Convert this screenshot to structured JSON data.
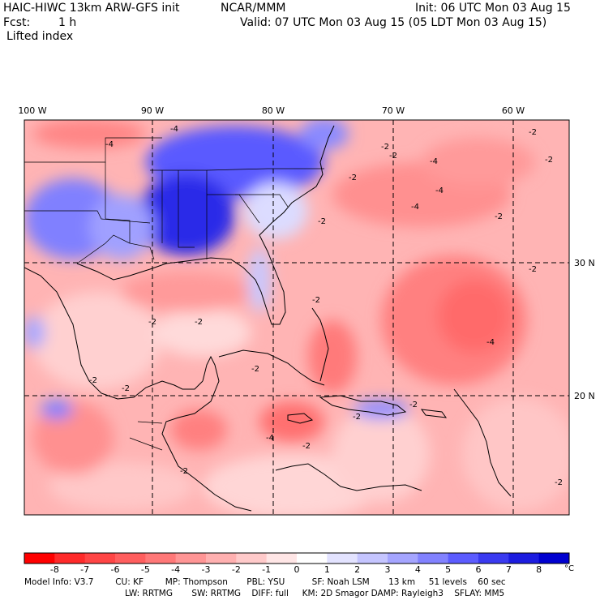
{
  "header": {
    "title_left": "HAIC-HIWC 13km ARW-GFS init",
    "org": "NCAR/MMM",
    "init": "Init: 06 UTC Mon 03 Aug 15",
    "fcst_label": "Fcst:",
    "fcst_value": "1 h",
    "valid": "Valid: 07 UTC Mon 03 Aug 15 (05 LDT Mon 03 Aug 15)",
    "field": "Lifted index"
  },
  "map": {
    "lon_labels": [
      "100 W",
      "90 W",
      "80 W",
      "70 W",
      "60 W"
    ],
    "lat_labels": [
      "30 N",
      "20 N"
    ],
    "contour_labels": [
      "-4",
      "-4",
      "-2",
      "-2",
      "-2",
      "-4",
      "-4",
      "-4",
      "-2",
      "-2",
      "-2",
      "-2",
      "-2",
      "-2",
      "-2",
      "-4",
      "-2",
      "-2",
      "-2",
      "-2",
      "-2",
      "-2",
      "-4",
      "-2",
      "-2",
      "-2"
    ],
    "colors": {
      "negative_strong": "#ff2020",
      "neutral": "#ffffff",
      "positive_strong": "#1010d8"
    }
  },
  "colorbar": {
    "ticks": [
      "-8",
      "-7",
      "-6",
      "-5",
      "-4",
      "-3",
      "-2",
      "-1",
      "0",
      "1",
      "2",
      "3",
      "4",
      "5",
      "6",
      "7",
      "8"
    ],
    "unit": "°C",
    "colors": [
      "#ff0000",
      "#ff2a2a",
      "#ff4545",
      "#ff5e5e",
      "#ff7878",
      "#ff9595",
      "#ffb0b0",
      "#ffcaca",
      "#ffe6e6",
      "#ffffff",
      "#e3e3ff",
      "#c5c5ff",
      "#a5a5ff",
      "#8282ff",
      "#5c5cff",
      "#3a3af0",
      "#1c1ce0",
      "#0000d0"
    ]
  },
  "model_info": {
    "line1": "Model Info: V3.7        CU: KF        MP: Thompson       PBL: YSU          SF: Noah LSM       13 km     51 levels    60 sec",
    "line2": "LW: RRTMG       SW: RRTMG    DIFF: full     KM: 2D Smagor DAMP: Rayleigh3    SFLAY: MM5"
  }
}
